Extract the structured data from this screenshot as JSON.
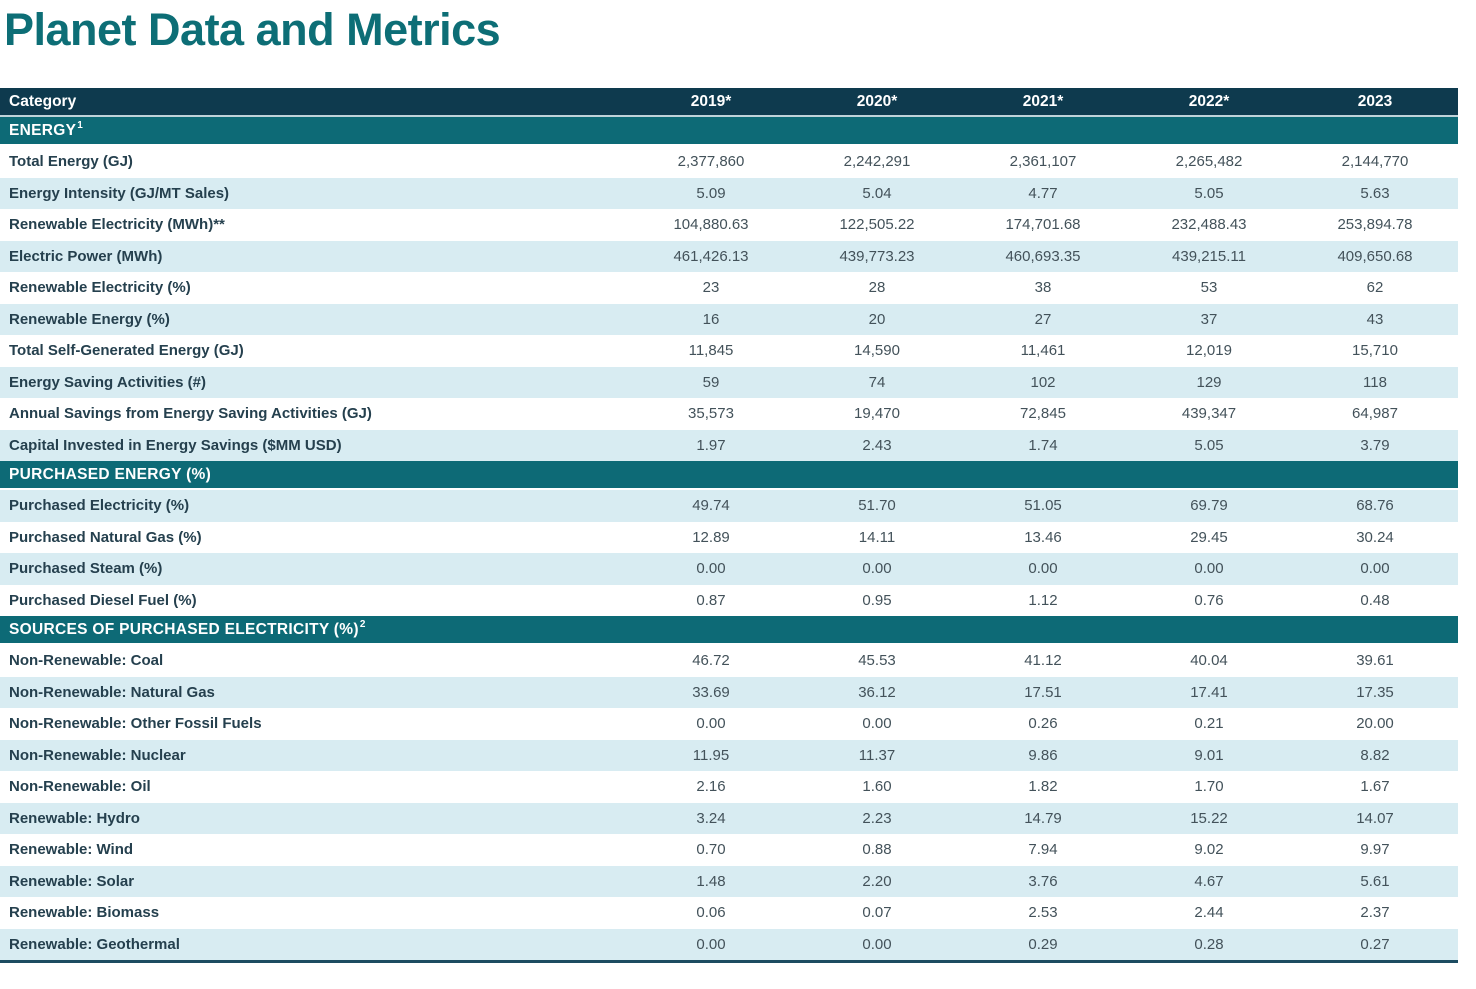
{
  "page_title": "Planet Data and Metrics",
  "colors": {
    "title_text": "#0d6e76",
    "header_row_bg": "#0e3a4e",
    "section_header_bg": "#0d6a76",
    "row_stripe_bg": "#d8ecf2",
    "row_white_bg": "#ffffff",
    "header_text": "#ffffff",
    "label_text": "#25404e",
    "value_text": "#43525a",
    "table_bottom_border": "#1c4c61"
  },
  "table": {
    "columns": [
      "Category",
      "2019*",
      "2020*",
      "2021*",
      "2022*",
      "2023"
    ],
    "sections": [
      {
        "title": "ENERGY",
        "sup": "1",
        "stripe_start": "white",
        "rows": [
          {
            "label": "Total Energy (GJ)",
            "values": [
              "2,377,860",
              "2,242,291",
              "2,361,107",
              "2,265,482",
              "2,144,770"
            ]
          },
          {
            "label": "Energy Intensity (GJ/MT Sales)",
            "values": [
              "5.09",
              "5.04",
              "4.77",
              "5.05",
              "5.63"
            ]
          },
          {
            "label": "Renewable Electricity (MWh)**",
            "values": [
              "104,880.63",
              "122,505.22",
              "174,701.68",
              "232,488.43",
              "253,894.78"
            ]
          },
          {
            "label": "Electric Power (MWh)",
            "values": [
              "461,426.13",
              "439,773.23",
              "460,693.35",
              "439,215.11",
              "409,650.68"
            ]
          },
          {
            "label": "Renewable Electricity (%)",
            "values": [
              "23",
              "28",
              "38",
              "53",
              "62"
            ]
          },
          {
            "label": "Renewable Energy (%)",
            "values": [
              "16",
              "20",
              "27",
              "37",
              "43"
            ]
          },
          {
            "label": "Total Self-Generated Energy (GJ)",
            "values": [
              "11,845",
              "14,590",
              "11,461",
              "12,019",
              "15,710"
            ]
          },
          {
            "label": "Energy Saving Activities (#)",
            "values": [
              "59",
              "74",
              "102",
              "129",
              "118"
            ]
          },
          {
            "label": "Annual Savings from Energy Saving Activities (GJ)",
            "values": [
              "35,573",
              "19,470",
              "72,845",
              "439,347",
              "64,987"
            ]
          },
          {
            "label": "Capital Invested in Energy Savings ($MM USD)",
            "values": [
              "1.97",
              "2.43",
              "1.74",
              "5.05",
              "3.79"
            ]
          }
        ]
      },
      {
        "title": "PURCHASED ENERGY (%)",
        "sup": "",
        "stripe_start": "blue",
        "rows": [
          {
            "label": "Purchased Electricity (%)",
            "values": [
              "49.74",
              "51.70",
              "51.05",
              "69.79",
              "68.76"
            ]
          },
          {
            "label": "Purchased Natural Gas (%)",
            "values": [
              "12.89",
              "14.11",
              "13.46",
              "29.45",
              "30.24"
            ]
          },
          {
            "label": "Purchased Steam (%)",
            "values": [
              "0.00",
              "0.00",
              "0.00",
              "0.00",
              "0.00"
            ]
          },
          {
            "label": "Purchased Diesel Fuel (%)",
            "values": [
              "0.87",
              "0.95",
              "1.12",
              "0.76",
              "0.48"
            ]
          }
        ]
      },
      {
        "title": "SOURCES OF PURCHASED ELECTRICITY (%)",
        "sup": "2",
        "stripe_start": "white",
        "rows": [
          {
            "label": "Non-Renewable: Coal",
            "values": [
              "46.72",
              "45.53",
              "41.12",
              "40.04",
              "39.61"
            ]
          },
          {
            "label": "Non-Renewable: Natural Gas",
            "values": [
              "33.69",
              "36.12",
              "17.51",
              "17.41",
              "17.35"
            ]
          },
          {
            "label": "Non-Renewable: Other Fossil Fuels",
            "values": [
              "0.00",
              "0.00",
              "0.26",
              "0.21",
              "20.00"
            ]
          },
          {
            "label": "Non-Renewable: Nuclear",
            "values": [
              "11.95",
              "11.37",
              "9.86",
              "9.01",
              "8.82"
            ]
          },
          {
            "label": "Non-Renewable: Oil",
            "values": [
              "2.16",
              "1.60",
              "1.82",
              "1.70",
              "1.67"
            ]
          },
          {
            "label": "Renewable: Hydro",
            "values": [
              "3.24",
              "2.23",
              "14.79",
              "15.22",
              "14.07"
            ]
          },
          {
            "label": "Renewable: Wind",
            "values": [
              "0.70",
              "0.88",
              "7.94",
              "9.02",
              "9.97"
            ]
          },
          {
            "label": "Renewable: Solar",
            "values": [
              "1.48",
              "2.20",
              "3.76",
              "4.67",
              "5.61"
            ]
          },
          {
            "label": "Renewable: Biomass",
            "values": [
              "0.06",
              "0.07",
              "2.53",
              "2.44",
              "2.37"
            ]
          },
          {
            "label": "Renewable: Geothermal",
            "values": [
              "0.00",
              "0.00",
              "0.29",
              "0.28",
              "0.27"
            ]
          }
        ]
      }
    ]
  }
}
